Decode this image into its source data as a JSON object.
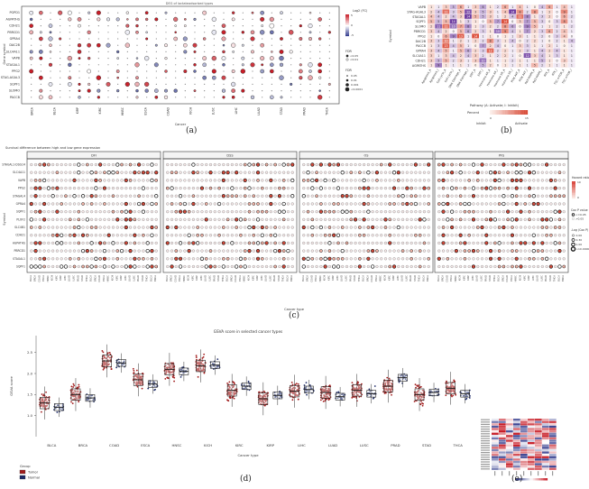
{
  "panels": {
    "a": {
      "label": "(a)",
      "title": "DEG of lactateadsorbed types",
      "ylabel": "Gene symbol",
      "xlabel": "Cancer",
      "genes": [
        "PGPD1",
        "AGPATHS",
        "CDH21",
        "PBRCD1",
        "GPRA4",
        "DAC2B",
        "SLC4A11",
        "VAPB",
        "STAGAL1",
        "PPG2",
        "STAG-AGAL3",
        "SQPF1",
        "SLOMO",
        "PACCB"
      ],
      "cancers": [
        "BRCA",
        "BLCA",
        "KIRP",
        "KIRC",
        "HNSC",
        "ESCA",
        "COAD",
        "KICH",
        "LUSC",
        "LIHC",
        "LUAD",
        "STAD",
        "PRAD",
        "THCA"
      ],
      "legend": {
        "fc_title": "Log2 (FC)",
        "fdr_title": "FDR",
        "fdr_items": [
          "<0.05",
          "<0.01"
        ],
        "fdr_title2": "FDR",
        "size_items": [
          "0.05",
          "0.01",
          "0.001",
          "<0.0001"
        ],
        "scale_max": "5",
        "scale_mid": "0",
        "scale_min": "-5"
      }
    },
    "b": {
      "label": "(b)",
      "ylabel": "Symbol",
      "xlabel": "Pathway (A: Activate; I: Inhibit)",
      "rows": [
        "VAPB",
        "STAG-AGAL3",
        "STAGAL1",
        "SQPF1",
        "SLOMO",
        "PBRCD1",
        "PPG2",
        "DAC2B",
        "PACCB",
        "GPRA4",
        "SLC4A11",
        "CDH21",
        "AGPATHS"
      ],
      "cols": [
        "Apoptosis_A",
        "Apoptosis_I",
        "Cell cycle_A",
        "Cell cycle_I",
        "DNA Damage_A",
        "DNA Damage_I",
        "EMT_A",
        "EMT_I",
        "Hormone AR_A",
        "Hormone AR_I",
        "Hormone ER_A",
        "Hormone ER_I",
        "PI3K AKT_A",
        "PI3K AKT_I",
        "RAS MAPK_A",
        "RAS MAPK_I",
        "RTK_A",
        "RTK_I",
        "TSC mTOR_A",
        "TSC mTOR_I"
      ],
      "values": [
        [
          1,
          1,
          3,
          5,
          6,
          1,
          3,
          6,
          1,
          2,
          6,
          1,
          4,
          1,
          0,
          4,
          6,
          1,
          4,
          1
        ],
        [
          2,
          4,
          11,
          3,
          5,
          12,
          3,
          5,
          3,
          1,
          4,
          14,
          8,
          2,
          8,
          1,
          2,
          0,
          9,
          1
        ],
        [
          4,
          4,
          2,
          4,
          3,
          14,
          5,
          5,
          3,
          1,
          2,
          4,
          11,
          8,
          1,
          3,
          2,
          0,
          6,
          2
        ],
        [
          5,
          5,
          5,
          14,
          1,
          3,
          1,
          0,
          5,
          7,
          14,
          0,
          3,
          7,
          5,
          3,
          0,
          3,
          8,
          1
        ],
        [
          2,
          11,
          11,
          10,
          7,
          8,
          1,
          3,
          2,
          2,
          8,
          6,
          0,
          9,
          5,
          1,
          1,
          2,
          1,
          2
        ],
        [
          3,
          4,
          2,
          0,
          5,
          6,
          2,
          3,
          1,
          10,
          9,
          4,
          1,
          7,
          2,
          3,
          6,
          2,
          4,
          1
        ],
        [
          1,
          0,
          6,
          9,
          13,
          1,
          14,
          1,
          1,
          0,
          1,
          1,
          3,
          1,
          1,
          2,
          0,
          3,
          4,
          0
        ],
        [
          3,
          3,
          10,
          1,
          2,
          1,
          2,
          2,
          8,
          3,
          1,
          4,
          0,
          2,
          2,
          1,
          0,
          2,
          1,
          4
        ],
        [
          1,
          3,
          13,
          4,
          5,
          1,
          0,
          7,
          2,
          4,
          0,
          1,
          3,
          3,
          1,
          1,
          2,
          1,
          0,
          1
        ],
        [
          3,
          4,
          5,
          1,
          5,
          6,
          2,
          3,
          12,
          2,
          2,
          1,
          2,
          3,
          1,
          4,
          2,
          4,
          1,
          1
        ],
        [
          3,
          1,
          3,
          4,
          2,
          4,
          3,
          2,
          1,
          2,
          2,
          1,
          0,
          12,
          3,
          4,
          1,
          3,
          1,
          1
        ],
        [
          3,
          5,
          5,
          2,
          3,
          1,
          3,
          10,
          1,
          1,
          1,
          2,
          1,
          1,
          1,
          5,
          1,
          0,
          3,
          1
        ],
        [
          1,
          9,
          1,
          1,
          1,
          1,
          0,
          5,
          2,
          0,
          1,
          1,
          1,
          1,
          5,
          2,
          1,
          1,
          1,
          1
        ]
      ],
      "legend": {
        "title": "Percent",
        "left": "Inhibit",
        "right": "Activate",
        "min_label": "0",
        "max_label": "15"
      }
    },
    "c": {
      "label": "(c)",
      "title": "Survival difference between high and low gene expression",
      "ylabel": "Symbol",
      "xlabel": "Cancer type",
      "facets": [
        "DFI",
        "DSS",
        "OS",
        "PFS"
      ],
      "genes": [
        "STAGAL1-DSG14",
        "SLC4A11",
        "VAPB",
        "PPG2",
        "STAGAL4",
        "GPRA4",
        "SQPF1",
        "PLOF2",
        "SLC4B1",
        "CDH21",
        "AGPATHS",
        "PBRCD1",
        "STAGAL1",
        "SQPF1"
      ],
      "legend": {
        "hr_title": "Hazard ratio",
        "hr_max": "10",
        "hr_min": "0",
        "p_title": "Cox P value",
        "p_items": [
          "<=0.05",
          ">0.05"
        ],
        "log_title": "-Log (Cox P)",
        "log_items": [
          "0.00",
          "0.30",
          "1.00",
          ">10.0000"
        ]
      }
    },
    "d": {
      "label": "(d)",
      "title": "GSVA score in selected cancer types",
      "ylabel": "GSVA score",
      "xlabel": "Cancer type",
      "legend_title": "Group",
      "legend_items": [
        "Tumor",
        "Normal"
      ],
      "colors": {
        "tumor": "#a11c1c",
        "normal": "#1d2a68"
      }
    },
    "e": {
      "label": "(e)"
    }
  },
  "chart_data": [
    {
      "type": "scatter",
      "title": "DEG of lactateadsorbed types",
      "xlabel": "Cancer",
      "ylabel": "Gene symbol",
      "categories": [
        "BRCA",
        "BLCA",
        "KIRP",
        "KIRC",
        "HNSC",
        "ESCA",
        "COAD",
        "KICH",
        "LUSC",
        "LIHC",
        "LUAD",
        "STAD",
        "PRAD",
        "THCA"
      ]
    },
    {
      "type": "heatmap",
      "xlabel": "Pathway (A: Activate; I: Inhibit)",
      "ylabel": "Symbol",
      "range": [
        0,
        15
      ]
    },
    {
      "type": "scatter",
      "title": "Survival difference between high and low gene expression",
      "xlabel": "Cancer type",
      "ylabel": "Symbol",
      "facets": [
        "DFI",
        "DSS",
        "OS",
        "PFS"
      ]
    },
    {
      "type": "box",
      "title": "GSVA score in selected cancer types",
      "xlabel": "Cancer type",
      "ylabel": "GSVA score",
      "ylim": [
        0.5,
        2.9
      ],
      "yticks": [
        "1.0",
        "1.5",
        "2.0",
        "2.5"
      ],
      "categories": [
        "BLCA",
        "BRCA",
        "COAD",
        "ESCA",
        "HNSC",
        "KICH",
        "KIRC",
        "KIRP",
        "LIHC",
        "LUAD",
        "LUSC",
        "PRAD",
        "STAD",
        "THCA"
      ],
      "series": [
        {
          "name": "Tumor",
          "medians": [
            1.3,
            1.5,
            2.3,
            1.85,
            2.1,
            2.18,
            1.6,
            1.4,
            1.58,
            1.55,
            1.6,
            1.7,
            1.5,
            1.65
          ]
        },
        {
          "name": "Normal",
          "medians": [
            1.2,
            1.42,
            2.25,
            1.75,
            2.05,
            2.2,
            1.7,
            1.48,
            1.62,
            1.45,
            1.52,
            1.9,
            1.55,
            1.52
          ]
        }
      ]
    }
  ]
}
